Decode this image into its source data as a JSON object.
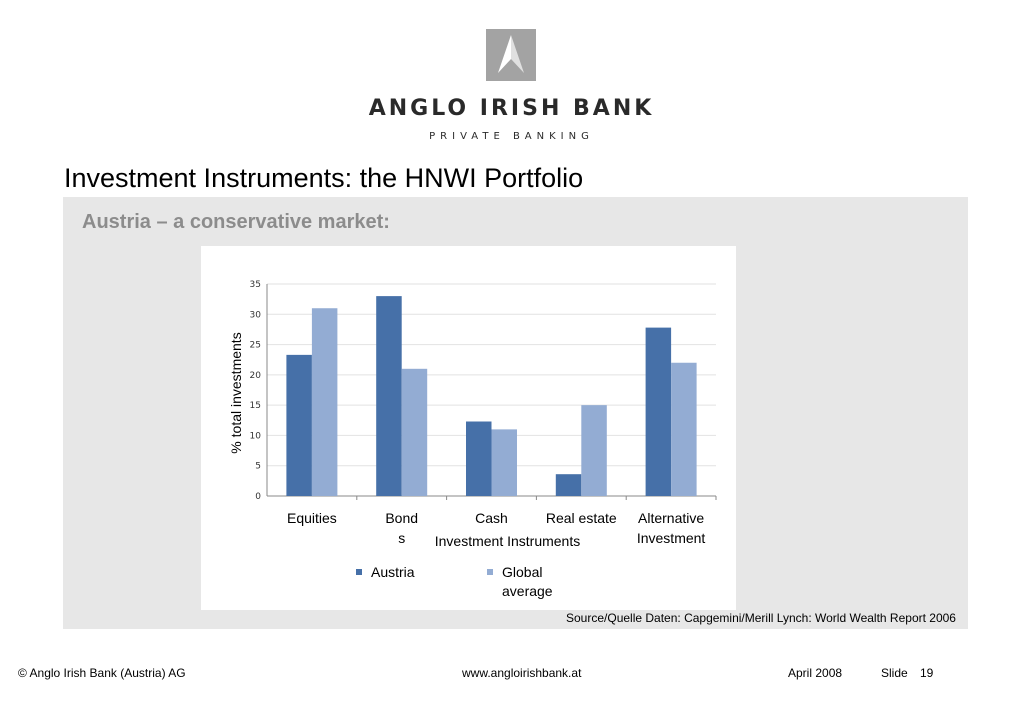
{
  "header": {
    "brand_name": "ANGLO IRISH BANK",
    "brand_sub": "PRIVATE BANKING"
  },
  "slide": {
    "title": "Investment Instruments:  the HNWI Portfolio",
    "subtitle": "Austria – a conservative market:",
    "source": "Source/Quelle Daten: Capgemini/Merill Lynch: World Wealth Report 2006"
  },
  "footer": {
    "copyright": "© Anglo Irish Bank (Austria) AG",
    "url": "www.angloirishbank.at",
    "date": "April 2008",
    "slide_label": "Slide",
    "slide_number": "19"
  },
  "colors": {
    "austria": "#4670a8",
    "global": "#93acd3",
    "panel": "#e7e7e7",
    "logo": "#a3a3a3"
  },
  "chart_data": {
    "type": "bar",
    "categories": [
      "Equities",
      "Bonds",
      "Cash",
      "Real estate",
      "Alternative Investment"
    ],
    "category_label_lines": [
      [
        "Equities"
      ],
      [
        "Bond",
        "s"
      ],
      [
        "Cash"
      ],
      [
        "Real estate"
      ],
      [
        "Alternative",
        "Investment"
      ]
    ],
    "series": [
      {
        "name": "Austria",
        "values": [
          23.3,
          33.0,
          12.3,
          3.6,
          27.8
        ]
      },
      {
        "name": "Global average",
        "values": [
          31.0,
          21.0,
          11.0,
          15.0,
          22.0
        ]
      }
    ],
    "legend_lines": [
      [
        "Austria"
      ],
      [
        "Global",
        "average"
      ]
    ],
    "xlabel": "Investment Instruments",
    "ylabel": "% total investments",
    "ylim": [
      0,
      35
    ],
    "yticks": [
      0,
      5,
      10,
      15,
      20,
      25,
      30,
      35
    ],
    "grid": true,
    "legend_position": "bottom"
  }
}
